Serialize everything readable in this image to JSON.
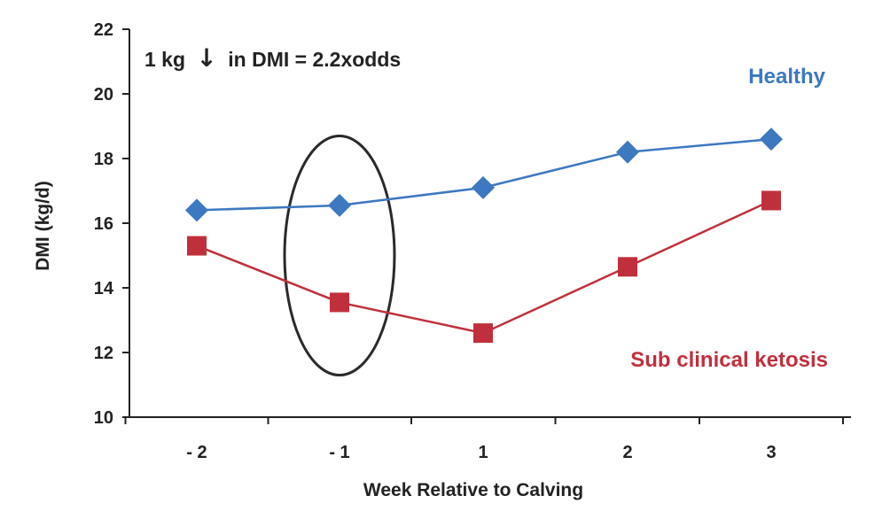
{
  "chart_data": {
    "type": "line",
    "categories": [
      "- 2",
      "- 1",
      "1",
      "2",
      "3"
    ],
    "series": [
      {
        "name": "Healthy",
        "values": [
          16.4,
          16.55,
          17.1,
          18.2,
          18.6
        ],
        "color": "#3d78c0",
        "marker": "diamond"
      },
      {
        "name": "Sub clinical ketosis",
        "values": [
          15.3,
          13.55,
          12.6,
          14.65,
          16.7
        ],
        "color": "#c0303c",
        "marker": "square"
      }
    ],
    "xlabel": "Week Relative to Calving",
    "ylabel": "DMI (kg/d)",
    "ylim": [
      10,
      22
    ],
    "yticks": [
      10,
      12,
      14,
      16,
      18,
      20,
      22
    ],
    "grid": false,
    "annotation": {
      "prefix": "1 kg",
      "arrow": "↓",
      "suffix": "in DMI = 2.2xodds"
    },
    "highlight": {
      "category": "- 1",
      "shape": "ellipse",
      "ymin": 11.3,
      "ymax": 18.7
    }
  }
}
